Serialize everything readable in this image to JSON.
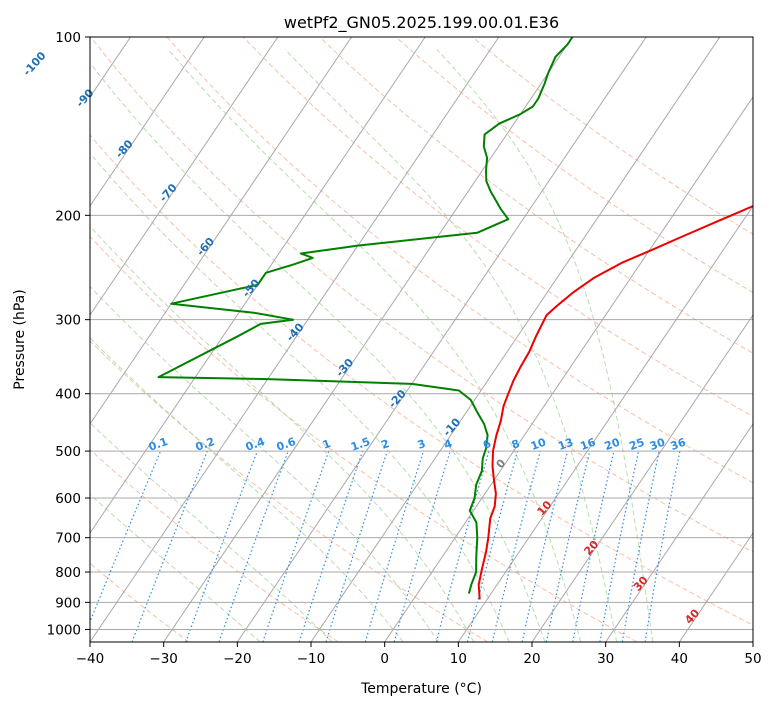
{
  "chart_data": {
    "type": "line",
    "subtype": "skew-T log-P diagram",
    "title": "wetPf2_GN05.2025.199.00.01.E36",
    "xlabel": "Temperature (°C)",
    "ylabel": "Pressure (hPa)",
    "xlim": [
      -40,
      50
    ],
    "ylim": [
      1050,
      100
    ],
    "yscale": "log",
    "grid": true,
    "x_ticks": [
      "−40",
      "−30",
      "−20",
      "−10",
      "0",
      "10",
      "20",
      "30",
      "40",
      "50"
    ],
    "x_tick_values": [
      -40,
      -30,
      -20,
      -10,
      0,
      10,
      20,
      30,
      40,
      50
    ],
    "y_ticks": [
      "100",
      "200",
      "300",
      "400",
      "500",
      "600",
      "700",
      "800",
      "900",
      "1000"
    ],
    "y_tick_values": [
      100,
      200,
      300,
      400,
      500,
      600,
      700,
      800,
      900,
      1000
    ],
    "skew_isotherm_values": [
      -130,
      -120,
      -110,
      -100,
      -90,
      -80,
      -70,
      -60,
      -50,
      -40,
      -30,
      -20,
      -10,
      0,
      10,
      20,
      30,
      40,
      50
    ],
    "isotherm_labels": [
      {
        "text": "-100",
        "t": -100,
        "p": 112
      },
      {
        "text": "-90",
        "t": -90,
        "p": 128
      },
      {
        "text": "-80",
        "t": -80,
        "p": 156
      },
      {
        "text": "-70",
        "t": -70,
        "p": 185
      },
      {
        "text": "-60",
        "t": -60,
        "p": 228
      },
      {
        "text": "-50",
        "t": -50,
        "p": 268
      },
      {
        "text": "-40",
        "t": -40,
        "p": 318
      },
      {
        "text": "-30",
        "t": -30,
        "p": 365
      },
      {
        "text": "-20",
        "t": -20,
        "p": 412
      },
      {
        "text": "-10",
        "t": -10,
        "p": 460
      }
    ],
    "positive_isotherm_labels": [
      {
        "text": "0",
        "t": 0,
        "p": 530
      },
      {
        "text": "10",
        "t": 10,
        "p": 630
      },
      {
        "text": "20",
        "t": 20,
        "p": 735
      },
      {
        "text": "30",
        "t": 30,
        "p": 845
      },
      {
        "text": "40",
        "t": 40,
        "p": 960
      }
    ],
    "mixing_ratio_values": [
      0.1,
      0.2,
      0.4,
      0.6,
      1,
      1.5,
      2,
      3,
      4,
      6,
      8,
      10,
      13,
      16,
      20,
      25,
      30,
      36
    ],
    "mixing_ratio_labels": [
      "0.1",
      "0.2",
      "0.4",
      "0.6",
      "1",
      "1.5",
      "2",
      "3",
      "4",
      "6",
      "8",
      "10",
      "13",
      "16",
      "20",
      "25",
      "30",
      "36"
    ],
    "dry_adiabat_theta_C": [
      -30,
      -10,
      10,
      30,
      50,
      70,
      90,
      110,
      130,
      150,
      170
    ],
    "moist_adiabat_start_C": [
      -20,
      -10,
      0,
      5,
      10,
      15,
      20,
      25,
      30,
      35
    ],
    "series": [
      {
        "color": "#ee0000",
        "points": [
          [
            9.0,
            890
          ],
          [
            7.5,
            840
          ],
          [
            6.5,
            790
          ],
          [
            5.5,
            740
          ],
          [
            4.5,
            700
          ],
          [
            3.0,
            650
          ],
          [
            2.5,
            620
          ],
          [
            1.5,
            590
          ],
          [
            0.0,
            560
          ],
          [
            -1.5,
            530
          ],
          [
            -2.8,
            500
          ],
          [
            -3.8,
            470
          ],
          [
            -4.5,
            445
          ],
          [
            -5.5,
            420
          ],
          [
            -6.0,
            400
          ],
          [
            -6.5,
            380
          ],
          [
            -6.8,
            360
          ],
          [
            -7.0,
            340
          ],
          [
            -7.5,
            320
          ],
          [
            -7.8,
            305
          ],
          [
            -8.0,
            295
          ],
          [
            -7.5,
            285
          ],
          [
            -6.5,
            270
          ],
          [
            -5.0,
            255
          ],
          [
            -2.5,
            240
          ],
          [
            0.5,
            228
          ],
          [
            3.0,
            218
          ],
          [
            6.5,
            205
          ],
          [
            8.5,
            198
          ],
          [
            11.5,
            188
          ],
          [
            14.0,
            178
          ],
          [
            16.5,
            167
          ],
          [
            20.5,
            156
          ],
          [
            23.0,
            145
          ],
          [
            24.5,
            138
          ],
          [
            26.0,
            130
          ],
          [
            28.5,
            122
          ],
          [
            31.5,
            115
          ],
          [
            35.0,
            108
          ],
          [
            38.0,
            100
          ]
        ]
      },
      {
        "color": "#008000",
        "points": [
          [
            7.0,
            870
          ],
          [
            6.5,
            840
          ],
          [
            6.0,
            800
          ],
          [
            4.5,
            750
          ],
          [
            3.0,
            700
          ],
          [
            1.5,
            660
          ],
          [
            -0.5,
            630
          ],
          [
            -1.0,
            600
          ],
          [
            -2.0,
            570
          ],
          [
            -2.5,
            540
          ],
          [
            -3.5,
            515
          ],
          [
            -4.0,
            495
          ],
          [
            -5.0,
            470
          ],
          [
            -6.5,
            450
          ],
          [
            -8.5,
            430
          ],
          [
            -10.5,
            410
          ],
          [
            -13.0,
            395
          ],
          [
            -20.0,
            385
          ],
          [
            -40.0,
            378
          ],
          [
            -55.0,
            375
          ],
          [
            -48.0,
            320
          ],
          [
            -46.0,
            305
          ],
          [
            -42.0,
            300
          ],
          [
            -48.0,
            292
          ],
          [
            -60.0,
            282
          ],
          [
            -50.0,
            262
          ],
          [
            -50.0,
            250
          ],
          [
            -47.0,
            242
          ],
          [
            -45.0,
            236
          ],
          [
            -47.0,
            232
          ],
          [
            -40.0,
            225
          ],
          [
            -25.0,
            214
          ],
          [
            -22.0,
            203
          ],
          [
            -24.0,
            195
          ],
          [
            -27.0,
            182
          ],
          [
            -28.5,
            175
          ],
          [
            -29.5,
            168
          ],
          [
            -30.5,
            160
          ],
          [
            -32.0,
            153
          ],
          [
            -33.0,
            146
          ],
          [
            -32.0,
            140
          ],
          [
            -30.0,
            135
          ],
          [
            -29.0,
            131
          ],
          [
            -29.0,
            127
          ],
          [
            -29.5,
            120
          ],
          [
            -30.0,
            115
          ],
          [
            -30.5,
            108
          ],
          [
            -30.0,
            103
          ],
          [
            -30.0,
            100
          ]
        ]
      }
    ]
  }
}
